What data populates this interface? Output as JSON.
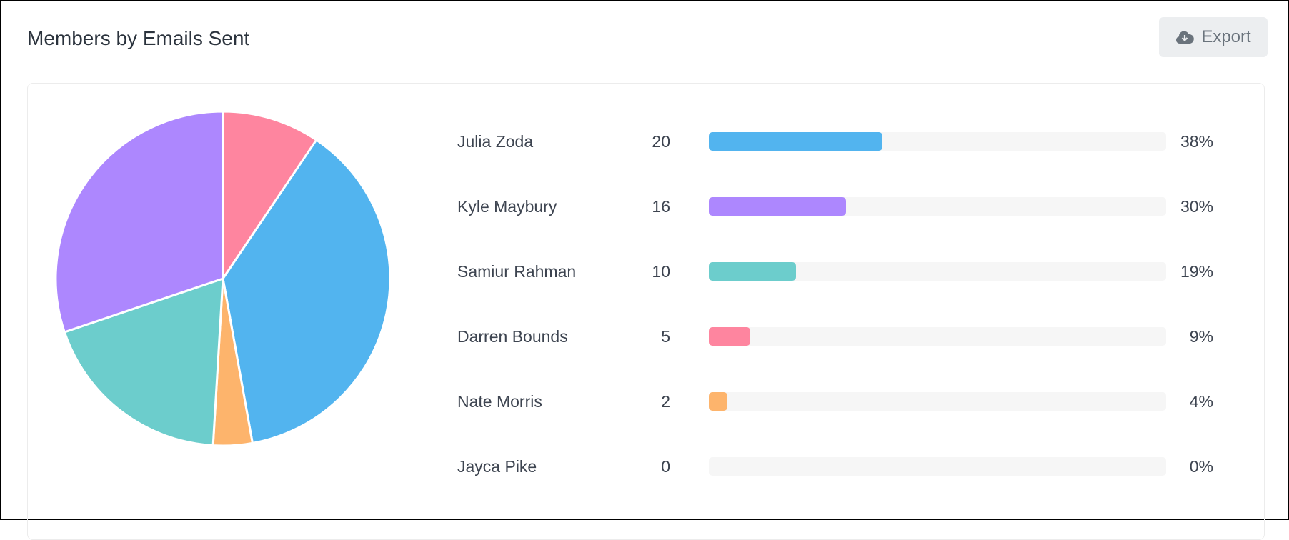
{
  "title": "Members by Emails Sent",
  "export_label": "Export",
  "chart_data": {
    "type": "pie",
    "title": "Members by Emails Sent",
    "slice_order": [
      "Darren Bounds",
      "Julia Zoda",
      "Nate Morris",
      "Samiur Rahman",
      "Kyle Maybury"
    ],
    "rows": [
      {
        "name": "Julia Zoda",
        "value": 20,
        "percent": "38%",
        "pct": 38,
        "color": "#52b4ef"
      },
      {
        "name": "Kyle Maybury",
        "value": 16,
        "percent": "30%",
        "pct": 30,
        "color": "#ad87fe"
      },
      {
        "name": "Samiur Rahman",
        "value": 10,
        "percent": "19%",
        "pct": 19,
        "color": "#6ccdcc"
      },
      {
        "name": "Darren Bounds",
        "value": 5,
        "percent": "9%",
        "pct": 9,
        "color": "#fe859f"
      },
      {
        "name": "Nate Morris",
        "value": 2,
        "percent": "4%",
        "pct": 4,
        "color": "#fdb46c"
      },
      {
        "name": "Jayca Pike",
        "value": 0,
        "percent": "0%",
        "pct": 0,
        "color": "#cccccc"
      }
    ]
  }
}
